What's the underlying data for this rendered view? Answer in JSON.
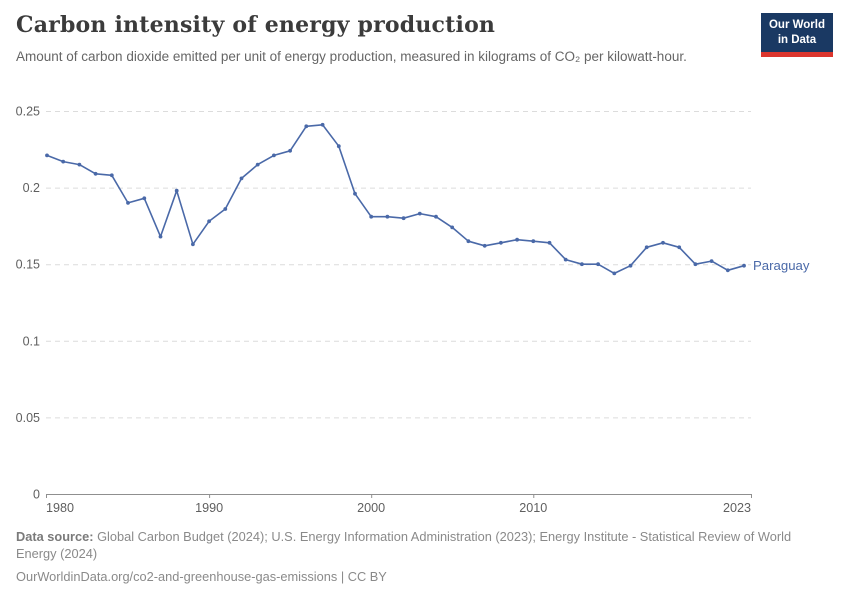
{
  "header": {
    "title": "Carbon intensity of energy production",
    "subtitle": "Amount of carbon dioxide emitted per unit of energy production, measured in kilograms of CO₂ per kilowatt-hour."
  },
  "logo": {
    "line1": "Our World",
    "line2": "in Data"
  },
  "chart_data": {
    "type": "line",
    "title": "Carbon intensity of energy production",
    "ylabel": "",
    "xlabel": "",
    "unit": "kilograms of CO₂ per kilowatt-hour",
    "xlim": [
      1980,
      2023
    ],
    "ylim": [
      0,
      0.25
    ],
    "xticks": [
      1980,
      1990,
      2000,
      2010,
      2023
    ],
    "yticks": [
      0,
      0.05,
      0.1,
      0.15,
      0.2,
      0.25
    ],
    "grid": "horizontal-dashed",
    "legend_position": "end-of-line-label",
    "x": [
      1980,
      1981,
      1982,
      1983,
      1984,
      1985,
      1986,
      1987,
      1988,
      1989,
      1990,
      1991,
      1992,
      1993,
      1994,
      1995,
      1996,
      1997,
      1998,
      1999,
      2000,
      2001,
      2002,
      2003,
      2004,
      2005,
      2006,
      2007,
      2008,
      2009,
      2010,
      2011,
      2012,
      2013,
      2014,
      2015,
      2016,
      2017,
      2018,
      2019,
      2020,
      2021,
      2022,
      2023
    ],
    "series": [
      {
        "name": "Paraguay",
        "color": "#4A69A8",
        "values": [
          0.221,
          0.217,
          0.215,
          0.209,
          0.208,
          0.19,
          0.193,
          0.168,
          0.198,
          0.163,
          0.178,
          0.186,
          0.206,
          0.215,
          0.221,
          0.224,
          0.24,
          0.241,
          0.227,
          0.196,
          0.181,
          0.181,
          0.18,
          0.183,
          0.181,
          0.174,
          0.165,
          0.162,
          0.164,
          0.166,
          0.165,
          0.164,
          0.153,
          0.15,
          0.15,
          0.144,
          0.149,
          0.161,
          0.164,
          0.161,
          0.15,
          0.152,
          0.146,
          0.149
        ]
      }
    ],
    "colors": {
      "grid": "#dcdcdc",
      "axis": "#8f8f8f",
      "tick_label": "#5f5f5f"
    }
  },
  "footer": {
    "datasource_label": "Data source:",
    "datasource_text": " Global Carbon Budget (2024); U.S. Energy Information Administration (2023); Energy Institute - Statistical Review of World Energy (2024)",
    "url": "OurWorldinData.org/co2-and-greenhouse-gas-emissions",
    "separator": " | ",
    "license": "CC BY"
  }
}
